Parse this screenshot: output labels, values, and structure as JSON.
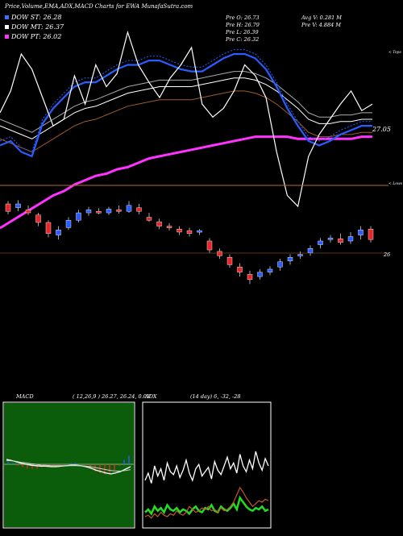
{
  "header": {
    "title": "Price,Volume,EMA,ADX,MACD Charts for EWA MunafaSutra.com",
    "legend": [
      {
        "label": "DOW ST: 26.28",
        "color": "#3b6fff"
      },
      {
        "label": "DOW MT: 26.37",
        "color": "#ffffff"
      },
      {
        "label": "DOW PT: 26.02",
        "color": "#ff33ff"
      }
    ],
    "stats": {
      "open": "Pre  O: 26.73",
      "high": "Pre  H: 26.79",
      "low": "Pre  L: 26.39",
      "close": "Pre  C: 26.32",
      "avg_volume": "Avg V: 0.281 M",
      "prev_volume": "Pre  V: 4.884  M"
    }
  },
  "main_chart": {
    "top_label": "< Tops",
    "lows_label": "< Lows",
    "level_label": "27.05",
    "candle_level_label": "26",
    "colors": {
      "white": "#ffffff",
      "blue": "#2a5cff",
      "magenta": "#ff33ff",
      "brown": "#a05a2c",
      "up": "#2a5cff",
      "down": "#e8262a",
      "divider": "#b56a2e"
    }
  },
  "macd": {
    "label": "MACD",
    "params": "( 12,26,9 ) 26.27,  26.24,  0.03"
  },
  "adx": {
    "label": "ADX",
    "params": "(14  day) 6,  -32,  -28"
  },
  "chart_data": [
    {
      "type": "line",
      "title": "Price,Volume,EMA,ADX,MACD Charts for EWA MunafaSutra.com",
      "series": [
        {
          "name": "DOW ST: 26.28",
          "values": [
            26.93,
            26.95,
            26.9,
            26.88,
            27.03,
            27.1,
            27.15,
            27.2,
            27.22,
            27.22,
            27.25,
            27.28,
            27.3,
            27.3,
            27.32,
            27.32,
            27.3,
            27.28,
            27.27,
            27.27,
            27.3,
            27.33,
            27.35,
            27.35,
            27.33,
            27.28,
            27.2,
            27.1,
            27.02,
            26.95,
            26.93,
            26.95,
            26.98,
            27.0,
            27.02,
            27.02
          ]
        },
        {
          "name": "DOW MT: 26.37",
          "values": [
            27.02,
            27.0,
            26.98,
            26.96,
            26.99,
            27.02,
            27.05,
            27.08,
            27.1,
            27.11,
            27.13,
            27.15,
            27.17,
            27.18,
            27.19,
            27.2,
            27.2,
            27.2,
            27.2,
            27.21,
            27.22,
            27.23,
            27.24,
            27.24,
            27.23,
            27.21,
            27.18,
            27.14,
            27.1,
            27.05,
            27.03,
            27.03,
            27.04,
            27.04,
            27.05,
            27.05
          ]
        },
        {
          "name": "DOW PT: 26.02",
          "values": [
            26.55,
            26.58,
            26.61,
            26.64,
            26.67,
            26.7,
            26.72,
            26.75,
            26.77,
            26.79,
            26.8,
            26.82,
            26.83,
            26.85,
            26.87,
            26.88,
            26.89,
            26.9,
            26.91,
            26.92,
            26.93,
            26.94,
            26.95,
            26.96,
            26.97,
            26.97,
            26.97,
            26.97,
            26.96,
            26.96,
            26.96,
            26.96,
            26.96,
            26.96,
            26.97,
            26.97
          ]
        }
      ]
    },
    {
      "type": "line",
      "series": [
        {
          "values": [
            0.1,
            0.08,
            0.05,
            0.02,
            0.0,
            -0.02,
            -0.03,
            -0.04,
            -0.04,
            -0.05,
            -0.05,
            -0.04,
            -0.03,
            -0.02,
            -0.02,
            -0.03,
            -0.05,
            -0.08,
            -0.12,
            -0.15,
            -0.18,
            -0.2,
            -0.18,
            -0.15,
            -0.1,
            -0.05
          ]
        },
        {
          "values": [
            0.08,
            0.07,
            0.06,
            0.04,
            0.03,
            0.01,
            0.0,
            -0.02,
            -0.02,
            -0.03,
            -0.03,
            -0.03,
            -0.03,
            -0.03,
            -0.03,
            -0.03,
            -0.04,
            -0.05,
            -0.07,
            -0.09,
            -0.11,
            -0.13,
            -0.14,
            -0.14,
            -0.13,
            -0.11
          ]
        }
      ]
    },
    {
      "type": "line",
      "series": [
        {
          "values": [
            30,
            35,
            28,
            40,
            33,
            38,
            30,
            42,
            36,
            34,
            40,
            32,
            37,
            44,
            35,
            30,
            38,
            41,
            33,
            36,
            39,
            31,
            43,
            37,
            34,
            40,
            46,
            38,
            42,
            35,
            48,
            40,
            36,
            44,
            38,
            50,
            42,
            37,
            45,
            40
          ]
        },
        {
          "values": [
            8,
            10,
            7,
            12,
            9,
            11,
            8,
            13,
            10,
            9,
            11,
            8,
            10,
            9,
            7,
            10,
            12,
            9,
            8,
            11,
            10,
            13,
            9,
            8,
            12,
            10,
            9,
            11,
            14,
            10,
            18,
            15,
            12,
            10,
            9,
            11,
            10,
            12,
            9,
            10
          ]
        },
        {
          "values": [
            5,
            6,
            4,
            7,
            5,
            8,
            6,
            5,
            7,
            6,
            9,
            7,
            6,
            8,
            12,
            10,
            8,
            9,
            11,
            10,
            12,
            9,
            10,
            8,
            11,
            9,
            10,
            12,
            15,
            20,
            25,
            22,
            18,
            15,
            12,
            14,
            16,
            15,
            17,
            16
          ]
        }
      ]
    }
  ]
}
